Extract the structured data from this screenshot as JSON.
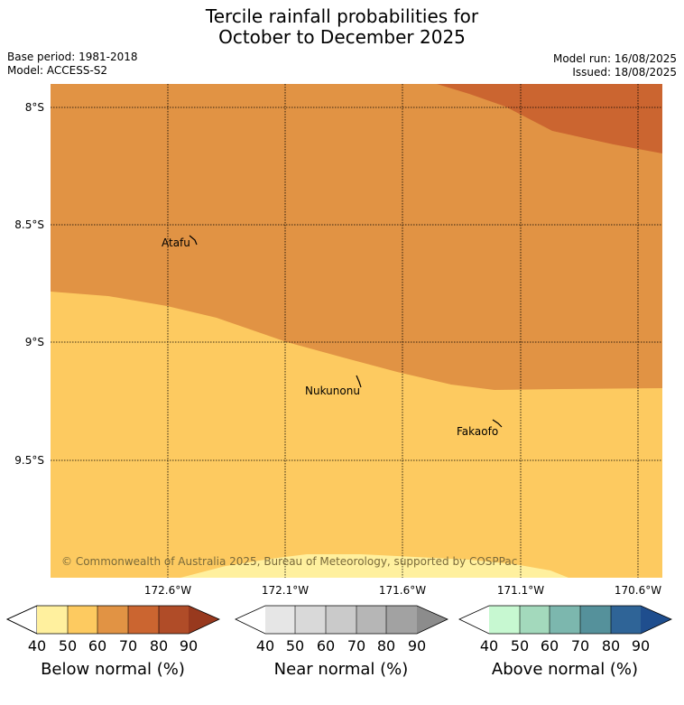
{
  "title_line1": "Tercile rainfall probabilities for",
  "title_line2": "October to December 2025",
  "base_period": "Base period: 1981-2018",
  "model": "Model: ACCESS-S2",
  "model_run": "Model run: 16/08/2025",
  "issued": "Issued: 18/08/2025",
  "lat_ticks": [
    "8°S",
    "8.5°S",
    "9°S",
    "9.5°S"
  ],
  "lon_ticks": [
    "172.6°W",
    "172.1°W",
    "171.6°W",
    "171.1°W",
    "170.6°W"
  ],
  "places": {
    "atafu": "Atafu",
    "nukunonu": "Nukunonu",
    "fakaofo": "Fakaofo"
  },
  "copyright": "© Commonwealth of Australia 2025, Bureau of Meteorology, supported by COSPPac",
  "colorbars": {
    "below": {
      "title": "Below normal (%)",
      "ticks": [
        "40",
        "50",
        "60",
        "70",
        "80",
        "90"
      ],
      "colors": [
        "#fff09e",
        "#fdca60",
        "#e19344",
        "#cb6530",
        "#b04c28",
        "#98391e"
      ]
    },
    "near": {
      "title": "Near normal (%)",
      "ticks": [
        "40",
        "50",
        "60",
        "70",
        "80",
        "90"
      ],
      "colors": [
        "#e6e6e6",
        "#d9d9d9",
        "#cacaca",
        "#b6b6b6",
        "#a2a2a2",
        "#8c8c8c"
      ]
    },
    "above": {
      "title": "Above normal (%)",
      "ticks": [
        "40",
        "50",
        "60",
        "70",
        "80",
        "90"
      ],
      "colors": [
        "#c7f8d1",
        "#a3d9bc",
        "#7cb7ae",
        "#55919b",
        "#2f6497",
        "#1f4e8e"
      ]
    }
  },
  "map_colors": {
    "below_50_60": "#fdca60",
    "below_60_70": "#e19344",
    "below_70_80": "#cb6530",
    "below_40_50": "#fff09e"
  }
}
